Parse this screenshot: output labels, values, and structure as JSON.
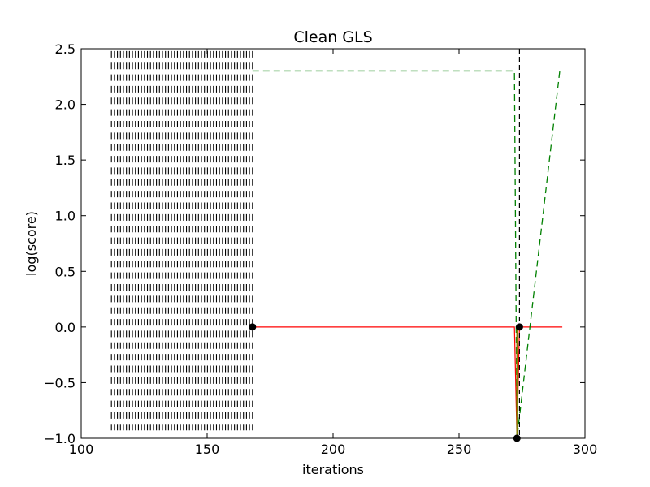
{
  "chart_data": {
    "type": "line",
    "title": "Clean GLS",
    "xlabel": "iterations",
    "ylabel": "log(score)",
    "xlim": [
      100,
      300
    ],
    "ylim": [
      -1.0,
      2.5
    ],
    "xticks": [
      100,
      150,
      200,
      250,
      300
    ],
    "xtick_labels": [
      "100",
      "150",
      "200",
      "250",
      "300"
    ],
    "yticks": [
      -1.0,
      -0.5,
      0.0,
      0.5,
      1.0,
      1.5,
      2.0,
      2.5
    ],
    "ytick_labels": [
      "−1.0",
      "−0.5",
      "0.0",
      "0.5",
      "1.0",
      "1.5",
      "2.0",
      "2.5"
    ],
    "grid": false,
    "legend": "none",
    "colors": {
      "red": "#ff0000",
      "green": "#008000",
      "black": "#000000",
      "olive": "#808000"
    },
    "series": [
      {
        "style": "red-solid",
        "x": [
          168,
          272,
          273,
          274,
          291
        ],
        "y": [
          0.0,
          0.0,
          -1.0,
          0.0,
          0.0
        ]
      },
      {
        "style": "green-dashed",
        "x": [
          168,
          272,
          273,
          290
        ],
        "y": [
          2.3,
          2.3,
          -1.0,
          2.3
        ]
      },
      {
        "style": "black-dashed-vline",
        "x": [
          274,
          274
        ],
        "y": [
          2.5,
          -1.0
        ]
      },
      {
        "style": "olive-vline",
        "x": [
          273,
          273
        ],
        "y": [
          0.0,
          -1.0
        ]
      }
    ],
    "markers": [
      {
        "x": 168,
        "y": 0.0
      },
      {
        "x": 274,
        "y": 0.0
      },
      {
        "x": 273,
        "y": -1.0
      }
    ],
    "hatch_block": {
      "x_range": [
        112,
        168
      ],
      "y_range": [
        -0.9,
        2.45
      ],
      "rows": 33,
      "ticks_per_row": 48
    }
  }
}
